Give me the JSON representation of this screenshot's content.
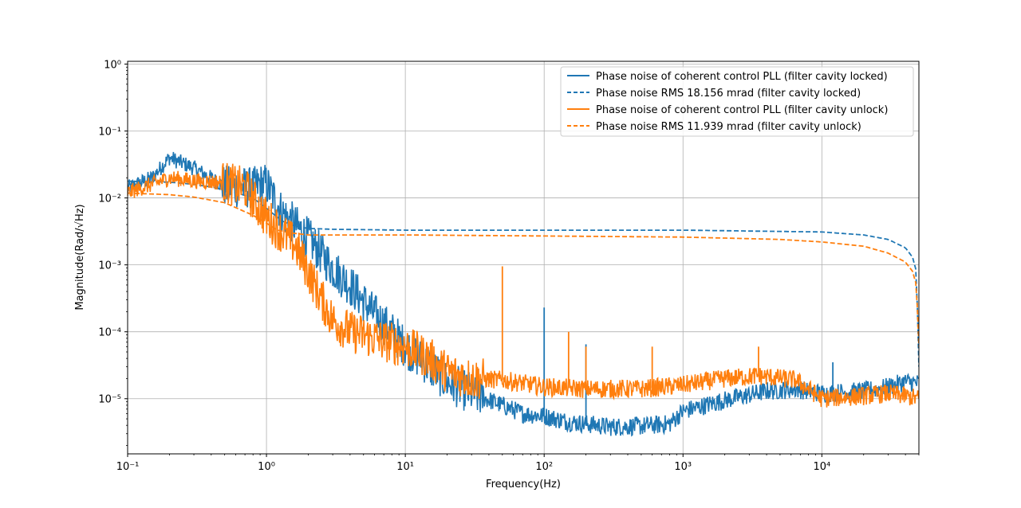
{
  "chart_data": {
    "type": "line",
    "title": "",
    "xlabel": "Frequency(Hz)",
    "ylabel": "Magnitude(Rad/√Hz)",
    "xscale": "log",
    "yscale": "log",
    "xlim": [
      0.1,
      50000
    ],
    "ylim": [
      1.5e-06,
      1.1
    ],
    "x_tick_labels": [
      "10⁻¹",
      "10⁰",
      "10¹",
      "10²",
      "10³",
      "10⁴"
    ],
    "y_tick_labels": [
      "10⁻⁵",
      "10⁻⁴",
      "10⁻³",
      "10⁻²",
      "10⁻¹",
      "10⁰"
    ],
    "grid": true,
    "legend_position": "top-right",
    "series": [
      {
        "name": "Phase noise of coherent control PLL (filter cavity locked)",
        "color": "#1f77b4",
        "style": "solid",
        "x": [
          0.1,
          0.15,
          0.2,
          0.3,
          0.5,
          0.8,
          0.9,
          1.0,
          1.3,
          2.0,
          3.0,
          4.0,
          6.0,
          8.0,
          10,
          15,
          20,
          30,
          50,
          70,
          100,
          150,
          200,
          300,
          500,
          800,
          1000,
          2000,
          4000,
          6500,
          10000,
          20000,
          30000,
          40000,
          50000
        ],
        "y": [
          0.014,
          0.02,
          0.04,
          0.028,
          0.015,
          0.014,
          0.016,
          0.016,
          0.006,
          0.0025,
          0.0009,
          0.0005,
          0.00018,
          0.0001,
          6e-05,
          3e-05,
          1.8e-05,
          1.2e-05,
          8e-06,
          6e-06,
          5.5e-06,
          4.5e-06,
          4.2e-06,
          3.8e-06,
          3.9e-06,
          4.2e-06,
          6.5e-06,
          9.5e-06,
          1.3e-05,
          1.4e-05,
          1.2e-05,
          1.3e-05,
          1.5e-05,
          1.8e-05,
          1.7e-05
        ]
      },
      {
        "name": "Phase noise RMS 18.156 mrad (filter cavity locked)",
        "color": "#1f77b4",
        "style": "dashed",
        "x": [
          0.1,
          0.2,
          0.3,
          0.5,
          0.8,
          1.0,
          1.3,
          1.6,
          2.0,
          3.0,
          10,
          100,
          1000,
          10000,
          20000,
          30000,
          40000,
          45000,
          48000,
          50000
        ],
        "y": [
          0.0178,
          0.0172,
          0.016,
          0.0135,
          0.01,
          0.007,
          0.0045,
          0.0038,
          0.0035,
          0.0034,
          0.0033,
          0.0033,
          0.0033,
          0.0031,
          0.0028,
          0.0024,
          0.0018,
          0.0013,
          0.0008,
          3e-05
        ]
      },
      {
        "name": "Phase noise of coherent control PLL (filter cavity unlock)",
        "color": "#ff7f0e",
        "style": "solid",
        "x": [
          0.1,
          0.15,
          0.2,
          0.3,
          0.5,
          0.7,
          1.0,
          1.3,
          1.6,
          2.0,
          2.5,
          3.0,
          4.0,
          6.0,
          10,
          15,
          20,
          30,
          50,
          70,
          100,
          200,
          500,
          1000,
          2000,
          3500,
          6500,
          10000,
          20000,
          30000,
          40000,
          50000
        ],
        "y": [
          0.012,
          0.016,
          0.02,
          0.018,
          0.017,
          0.014,
          0.005,
          0.003,
          0.002,
          0.0008,
          0.0003,
          0.00015,
          0.0001,
          8e-05,
          6e-05,
          4e-05,
          2.5e-05,
          2e-05,
          1.9e-05,
          1.7e-05,
          1.5e-05,
          1.4e-05,
          1.4e-05,
          1.6e-05,
          2e-05,
          2.2e-05,
          1.9e-05,
          1e-05,
          1.1e-05,
          1.2e-05,
          1.1e-05,
          1e-05
        ]
      },
      {
        "name": "Phase noise RMS 11.939 mrad (filter cavity unlock)",
        "color": "#ff7f0e",
        "style": "dashed",
        "x": [
          0.1,
          0.2,
          0.3,
          0.5,
          0.8,
          1.0,
          1.2,
          1.5,
          2.0,
          3.0,
          10,
          100,
          1000,
          5000,
          10000,
          20000,
          30000,
          40000,
          45000,
          48000,
          50000
        ],
        "y": [
          0.0118,
          0.0112,
          0.0103,
          0.0085,
          0.0055,
          0.0042,
          0.0033,
          0.003,
          0.0028,
          0.0028,
          0.0028,
          0.0027,
          0.0026,
          0.0024,
          0.0022,
          0.0019,
          0.0015,
          0.0011,
          0.0008,
          0.0005,
          6e-05
        ]
      }
    ],
    "spikes": [
      {
        "series": 2,
        "x": 50,
        "y": 0.00095
      },
      {
        "series": 0,
        "x": 100,
        "y": 0.00023
      },
      {
        "series": 2,
        "x": 150,
        "y": 0.0001
      },
      {
        "series": 2,
        "x": 200,
        "y": 6e-05
      },
      {
        "series": 0,
        "x": 200,
        "y": 6.5e-05
      },
      {
        "series": 2,
        "x": 600,
        "y": 6e-05
      },
      {
        "series": 2,
        "x": 3500,
        "y": 6e-05
      },
      {
        "series": 0,
        "x": 12000,
        "y": 3.5e-05
      }
    ]
  }
}
